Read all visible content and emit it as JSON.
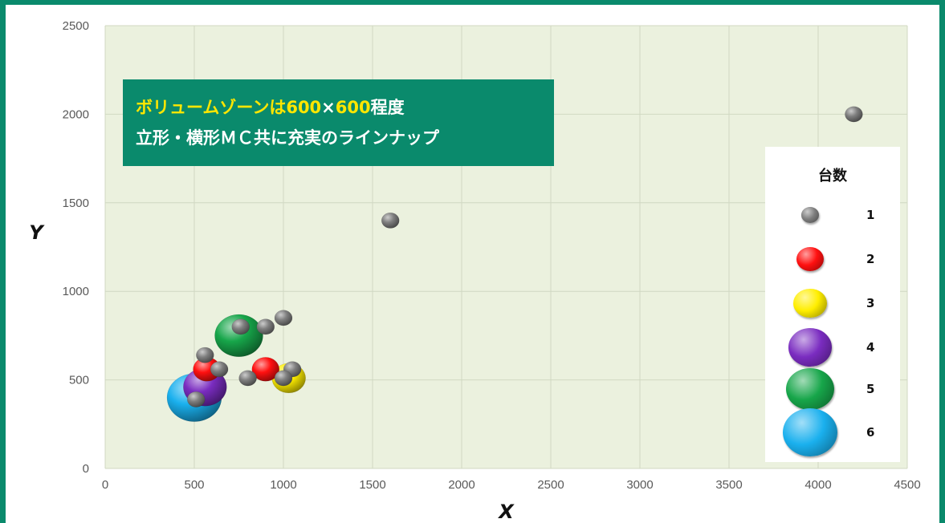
{
  "callout": {
    "line1": [
      "ボリュームゾーンは",
      "600",
      "×",
      "600",
      "程度"
    ],
    "line2": "立形・横形ＭＣ共に充実のラインナップ"
  },
  "legend": {
    "title": "台数",
    "items": [
      {
        "label": "1",
        "color": "#7f7f7f"
      },
      {
        "label": "2",
        "color": "#ff1010"
      },
      {
        "label": "3",
        "color": "#ffee00"
      },
      {
        "label": "4",
        "color": "#7a2cc0"
      },
      {
        "label": "5",
        "color": "#17a64a"
      },
      {
        "label": "6",
        "color": "#1ab0ee"
      }
    ]
  },
  "chart_data": {
    "type": "scatter",
    "xlabel": "X",
    "ylabel": "Y",
    "xlim": [
      0,
      4500
    ],
    "ylim": [
      0,
      2500
    ],
    "xticks": [
      0,
      500,
      1000,
      1500,
      2000,
      2500,
      3000,
      3500,
      4000,
      4500
    ],
    "yticks": [
      0,
      500,
      1000,
      1500,
      2000,
      2500
    ],
    "grid": true,
    "legend_position": "right",
    "size_legend": "台数",
    "points": [
      {
        "x": 500,
        "y": 400,
        "count": 6
      },
      {
        "x": 750,
        "y": 750,
        "count": 5
      },
      {
        "x": 560,
        "y": 460,
        "count": 4
      },
      {
        "x": 1030,
        "y": 510,
        "count": 3
      },
      {
        "x": 570,
        "y": 560,
        "count": 2
      },
      {
        "x": 900,
        "y": 560,
        "count": 2
      },
      {
        "x": 4200,
        "y": 2000,
        "count": 1
      },
      {
        "x": 1600,
        "y": 1400,
        "count": 1
      },
      {
        "x": 1000,
        "y": 850,
        "count": 1
      },
      {
        "x": 900,
        "y": 800,
        "count": 1
      },
      {
        "x": 760,
        "y": 800,
        "count": 1
      },
      {
        "x": 560,
        "y": 640,
        "count": 1
      },
      {
        "x": 640,
        "y": 560,
        "count": 1
      },
      {
        "x": 1050,
        "y": 560,
        "count": 1
      },
      {
        "x": 800,
        "y": 510,
        "count": 1
      },
      {
        "x": 1000,
        "y": 510,
        "count": 1
      },
      {
        "x": 510,
        "y": 390,
        "count": 1
      }
    ]
  }
}
